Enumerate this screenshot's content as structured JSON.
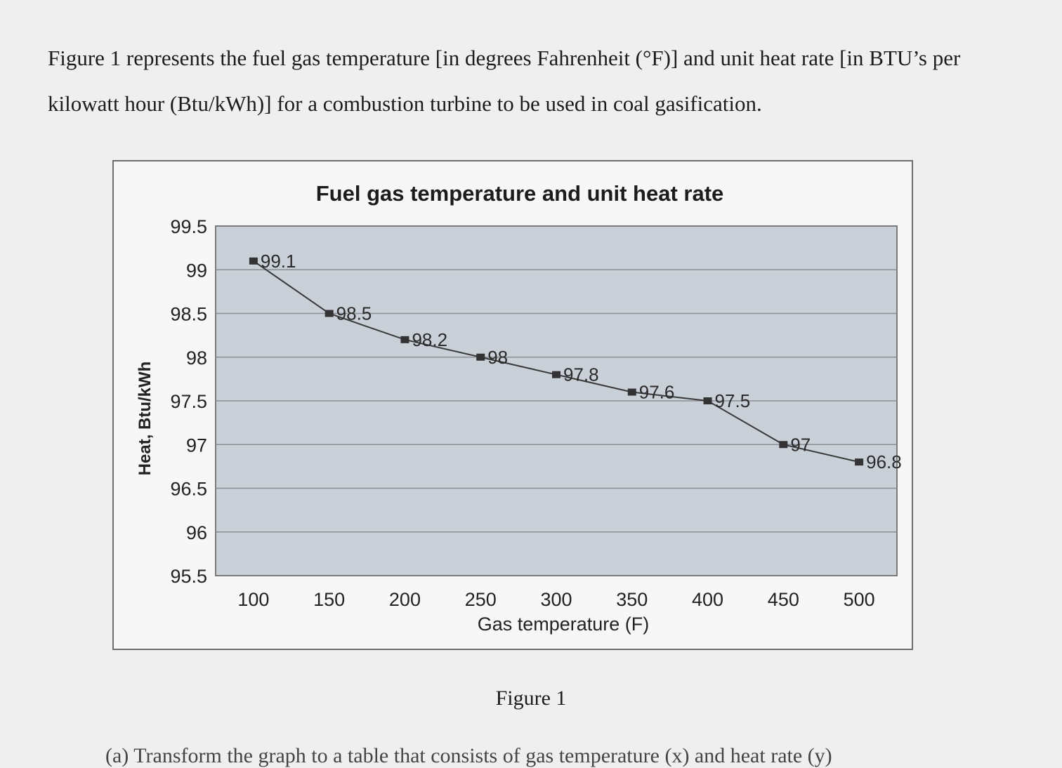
{
  "intro_text": "Figure 1 represents the fuel gas temperature [in degrees Fahrenheit (°F)] and unit heat rate [in BTU’s per kilowatt hour (Btu/kWh)] for a combustion turbine to be used in coal gasification.",
  "figure_caption": "Figure 1",
  "next_line_text": "(a)        Transform the graph to a table that consists of gas temperature (x) and heat rate (y)",
  "colors": {
    "plot_background": "#c9d0d8",
    "line": "#3a3a3a",
    "grid": "#8a8f96"
  },
  "chart_data": {
    "type": "line",
    "title": "Fuel gas temperature and unit heat rate",
    "xlabel": "Gas temperature (F)",
    "ylabel": "Heat, Btu/kWh",
    "x": [
      100,
      150,
      200,
      250,
      300,
      350,
      400,
      450,
      500
    ],
    "y": [
      99.1,
      98.5,
      98.2,
      98,
      97.8,
      97.6,
      97.5,
      97,
      96.8
    ],
    "data_labels": [
      "99.1",
      "98.5",
      "98.2",
      "98",
      "97.8",
      "97.6",
      "97.5",
      "97",
      "96.8"
    ],
    "xticks": [
      "100",
      "150",
      "200",
      "250",
      "300",
      "350",
      "400",
      "450",
      "500"
    ],
    "yticks": [
      "99.5",
      "99",
      "98.5",
      "98",
      "97.5",
      "97",
      "96.5",
      "96",
      "95.5"
    ],
    "xlim": [
      75,
      525
    ],
    "ylim": [
      95.5,
      99.5
    ],
    "grid": true,
    "legend": "none"
  }
}
